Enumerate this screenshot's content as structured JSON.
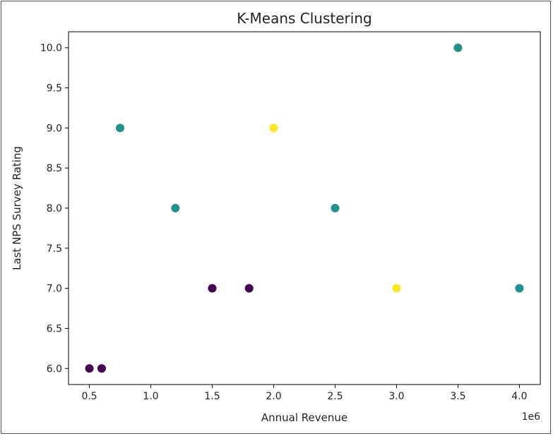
{
  "chart_data": {
    "type": "scatter",
    "title": "K-Means Clustering",
    "xlabel": "Annual Revenue",
    "ylabel": "Last NPS Survey Rating",
    "x_offset_label": "1e6",
    "xlim": [
      330000,
      4170000
    ],
    "ylim": [
      5.8,
      10.2
    ],
    "xticks": [
      500000,
      1000000,
      1500000,
      2000000,
      2500000,
      3000000,
      3500000,
      4000000
    ],
    "xtick_labels": [
      "0.5",
      "1.0",
      "1.5",
      "2.0",
      "2.5",
      "3.0",
      "3.5",
      "4.0"
    ],
    "yticks": [
      6.0,
      6.5,
      7.0,
      7.5,
      8.0,
      8.5,
      9.0,
      9.5,
      10.0
    ],
    "ytick_labels": [
      "6.0",
      "6.5",
      "7.0",
      "7.5",
      "8.0",
      "8.5",
      "9.0",
      "9.5",
      "10.0"
    ],
    "grid": false,
    "cluster_colors": [
      "#440154",
      "#21918c",
      "#fde725"
    ],
    "points": [
      {
        "x": 500000,
        "y": 6,
        "cluster": 0
      },
      {
        "x": 600000,
        "y": 6,
        "cluster": 0
      },
      {
        "x": 1500000,
        "y": 7,
        "cluster": 0
      },
      {
        "x": 1800000,
        "y": 7,
        "cluster": 0
      },
      {
        "x": 750000,
        "y": 9,
        "cluster": 1
      },
      {
        "x": 1200000,
        "y": 8,
        "cluster": 1
      },
      {
        "x": 2500000,
        "y": 8,
        "cluster": 1
      },
      {
        "x": 3500000,
        "y": 10,
        "cluster": 1
      },
      {
        "x": 4000000,
        "y": 7,
        "cluster": 1
      },
      {
        "x": 2000000,
        "y": 9,
        "cluster": 2
      },
      {
        "x": 3000000,
        "y": 7,
        "cluster": 2
      }
    ]
  }
}
